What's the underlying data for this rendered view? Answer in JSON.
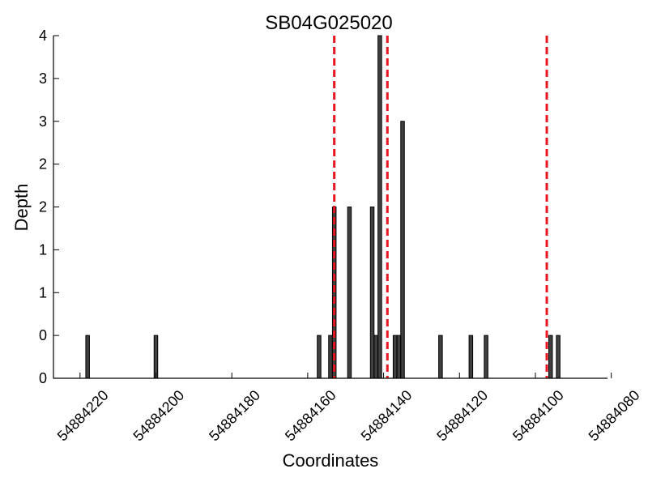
{
  "chart_data": {
    "type": "bar",
    "title": "SB04G025020",
    "xlabel": "Coordinates",
    "ylabel": "Depth",
    "x_reversed": true,
    "xlim": [
      54884227,
      54884081
    ],
    "ylim": [
      0,
      4
    ],
    "x_ticks": [
      54884220,
      54884200,
      54884180,
      54884160,
      54884140,
      54884120,
      54884100,
      54884080
    ],
    "y_ticks": [
      0,
      0.5,
      1,
      1.5,
      2,
      2.5,
      3,
      3.5,
      4
    ],
    "y_tick_labels": [
      "0",
      "0",
      "1",
      "1",
      "2",
      "2",
      "3",
      "3",
      "4"
    ],
    "bar_color": "#404040",
    "marker_color": "#e8141e",
    "grid": false,
    "series": [
      {
        "x": [
          54884218,
          54884200,
          54884157,
          54884154,
          54884153,
          54884149,
          54884143,
          54884142,
          54884141,
          54884137,
          54884136,
          54884135,
          54884125,
          54884117,
          54884113,
          54884096,
          54884094
        ],
        "values": [
          0.5,
          0.5,
          0.5,
          0.5,
          2,
          2,
          2,
          0.5,
          4,
          0.5,
          0.5,
          3,
          0.5,
          0.5,
          0.5,
          0.5,
          0.5
        ]
      }
    ],
    "vlines": [
      54884153,
      54884139,
      54884097
    ]
  }
}
